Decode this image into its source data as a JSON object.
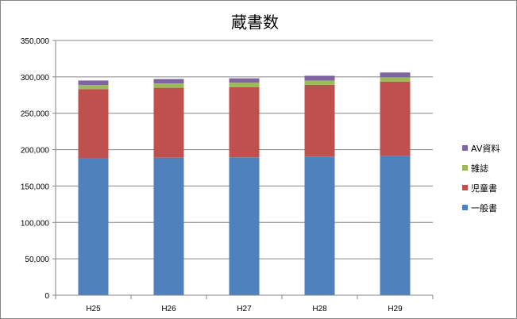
{
  "chart_data": {
    "type": "bar",
    "stacked": true,
    "title": "蔵書数",
    "xlabel": "",
    "ylabel": "",
    "categories": [
      "H25",
      "H26",
      "H27",
      "H28",
      "H29"
    ],
    "ylim": [
      0,
      350000
    ],
    "yticks": [
      0,
      50000,
      100000,
      150000,
      200000,
      250000,
      300000,
      350000
    ],
    "ytick_labels": [
      "0",
      "50,000",
      "100,000",
      "150,000",
      "200,000",
      "250,000",
      "300,000",
      "350,000"
    ],
    "grid": true,
    "legend_position": "right",
    "series": [
      {
        "name": "一般書",
        "color": "#4F81BD",
        "values": [
          188000,
          189000,
          189500,
          190500,
          191500
        ]
      },
      {
        "name": "児童書",
        "color": "#C0504D",
        "values": [
          95000,
          96000,
          96500,
          98500,
          102000
        ]
      },
      {
        "name": "雑誌",
        "color": "#9BBB59",
        "values": [
          6000,
          6000,
          6000,
          6000,
          6000
        ]
      },
      {
        "name": "AV資料",
        "color": "#8064A2",
        "values": [
          6000,
          6000,
          6000,
          6500,
          6500
        ]
      }
    ]
  }
}
